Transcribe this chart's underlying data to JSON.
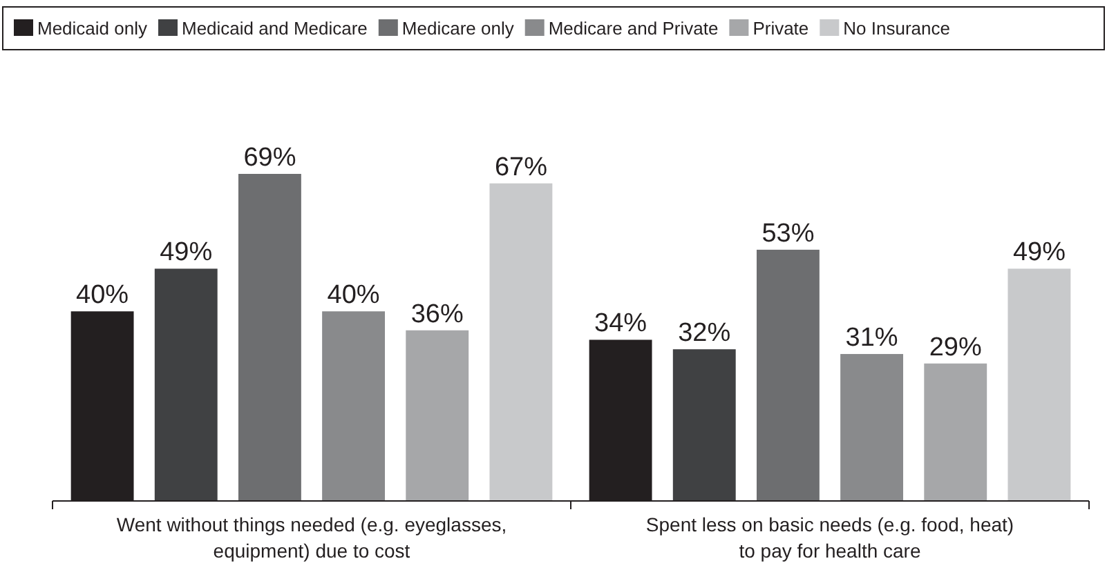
{
  "chart_data": {
    "type": "bar",
    "categories": [
      "Went without things needed (e.g. eyeglasses, equipment) due to cost",
      "Spent less on basic needs (e.g. food, heat) to pay for health care"
    ],
    "series": [
      {
        "name": "Medicaid only",
        "color": "#231f20",
        "values": [
          40,
          34
        ],
        "value_labels": [
          "40%",
          "34%"
        ]
      },
      {
        "name": "Medicaid and Medicare",
        "color": "#404143",
        "values": [
          49,
          32
        ],
        "value_labels": [
          "49%",
          "32%"
        ]
      },
      {
        "name": "Medicare only",
        "color": "#6d6e70",
        "values": [
          69,
          53
        ],
        "value_labels": [
          "69%",
          "53%"
        ]
      },
      {
        "name": "Medicare and Private",
        "color": "#898a8c",
        "values": [
          40,
          31
        ],
        "value_labels": [
          "40%",
          "31%"
        ]
      },
      {
        "name": "Private",
        "color": "#a6a7a9",
        "values": [
          36,
          29
        ],
        "value_labels": [
          "36%",
          "29%"
        ]
      },
      {
        "name": "No Insurance",
        "color": "#c8c9cb",
        "values": [
          67,
          49
        ],
        "value_labels": [
          "67%",
          "49%"
        ]
      }
    ],
    "legend": "top"
  }
}
